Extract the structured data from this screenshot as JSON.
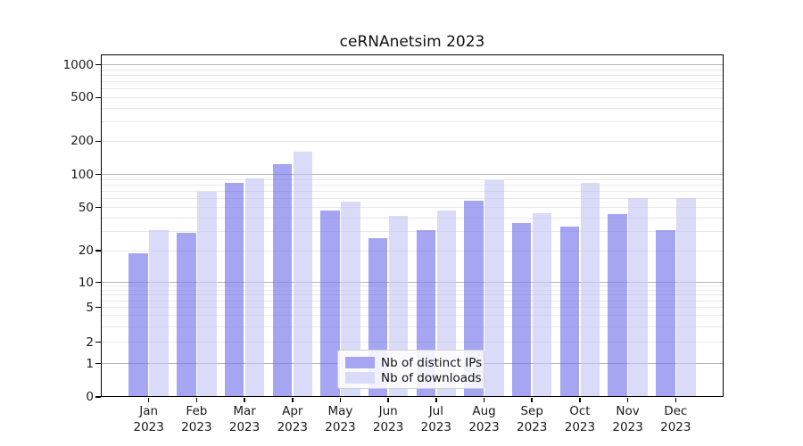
{
  "figure": {
    "title": "ceRNAnetsim 2023"
  },
  "chart_data": {
    "type": "bar",
    "title": "ceRNAnetsim 2023",
    "y_scale": "log-like with zero baseline",
    "grid": "horizontal",
    "categories": [
      "Jan",
      "Feb",
      "Mar",
      "Apr",
      "May",
      "Jun",
      "Jul",
      "Aug",
      "Sep",
      "Oct",
      "Nov",
      "Dec"
    ],
    "category_year": "2023",
    "y_ticks": [
      0,
      1,
      2,
      5,
      10,
      20,
      50,
      100,
      200,
      500,
      1000
    ],
    "ylim": [
      0,
      1160
    ],
    "legend_position": "inside-bottom-center",
    "series": [
      {
        "name": "Nb of distinct IPs",
        "color": "#a5a5f2",
        "fill": "rgba(112,112,235,0.63)",
        "values": [
          19,
          29,
          84,
          125,
          47,
          26,
          31,
          58,
          36,
          33,
          43,
          31
        ]
      },
      {
        "name": "Nb of downloads",
        "color": "#dadaf9",
        "fill": "rgba(196,196,245,0.63)",
        "values": [
          31,
          70,
          93,
          160,
          56,
          42,
          47,
          88,
          44,
          84,
          61,
          61
        ]
      }
    ]
  },
  "colors": {
    "background": "#ffffff",
    "grid_major": "#b5b5b5",
    "grid_minor": "#e8e8e8",
    "axis": "#000000",
    "text": "#1a1a1a",
    "legend_border": "#d0d0d0"
  }
}
